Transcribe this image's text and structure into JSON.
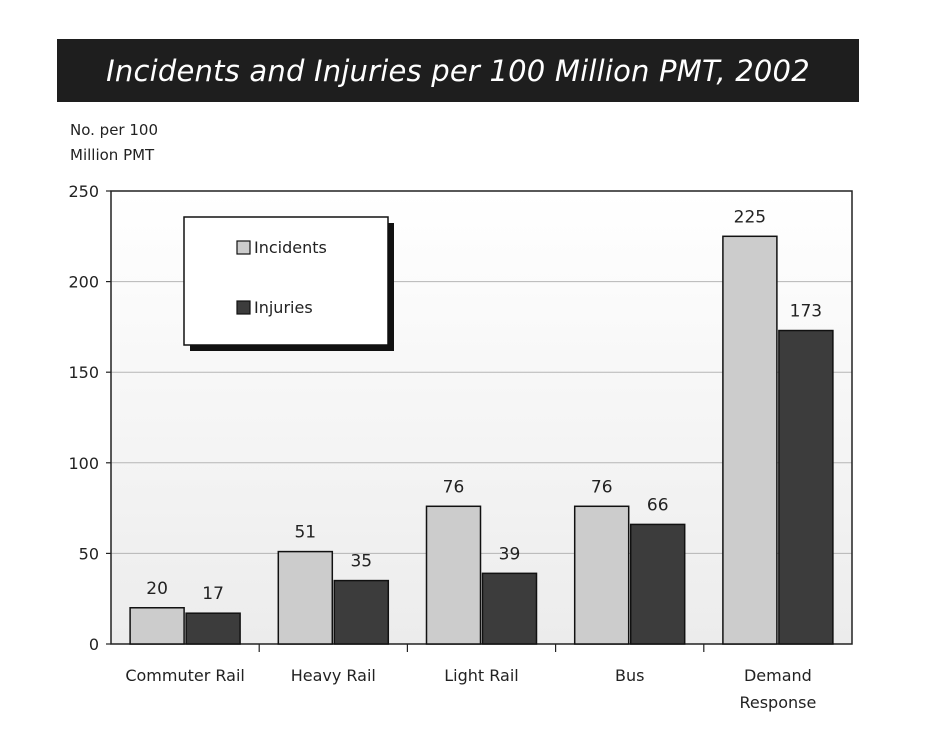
{
  "chart_data": {
    "type": "bar",
    "title": "Incidents and Injuries per 100 Million PMT, 2002",
    "ylabel_lines": [
      "No. per 100",
      "Million PMT"
    ],
    "xlabel": "",
    "ylim": [
      0,
      250
    ],
    "yticks": [
      0,
      50,
      100,
      150,
      200,
      250
    ],
    "grid": true,
    "legend_position": "top-left",
    "categories": [
      [
        "Commuter Rail"
      ],
      [
        "Heavy Rail"
      ],
      [
        "Light Rail"
      ],
      [
        "Bus"
      ],
      [
        "Demand",
        "Response"
      ]
    ],
    "series": [
      {
        "name": "Incidents",
        "color": "#cccccc",
        "values": [
          20,
          51,
          76,
          76,
          225
        ]
      },
      {
        "name": "Injuries",
        "color": "#3c3c3c",
        "values": [
          17,
          35,
          39,
          66,
          173
        ]
      }
    ]
  }
}
